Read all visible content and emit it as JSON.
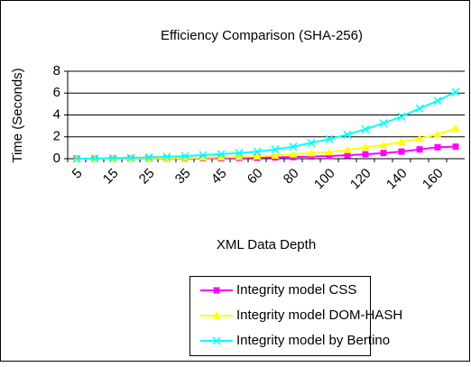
{
  "chart_data": {
    "type": "line",
    "title": "Efficiency Comparison (SHA-256)",
    "x_label": "XML Data Depth",
    "y_label": "Time (Seconds)",
    "categories": [
      "5",
      null,
      "15",
      null,
      "25",
      null,
      "35",
      null,
      "45",
      null,
      "60",
      null,
      "80",
      null,
      "100",
      null,
      "120",
      null,
      "140",
      null,
      "160",
      null
    ],
    "series": [
      {
        "name": "Integrity model CSS",
        "color": "#ff00ff",
        "marker": "square",
        "values": [
          0,
          0,
          0,
          0.01,
          0.01,
          0.02,
          0.03,
          0.04,
          0.05,
          0.07,
          0.09,
          0.12,
          0.15,
          0.2,
          0.25,
          0.32,
          0.4,
          0.52,
          0.65,
          0.85,
          1.05,
          1.1
        ]
      },
      {
        "name": "Integrity model DOM-HASH",
        "color": "#ffff00",
        "marker": "triangle",
        "values": [
          0,
          0,
          0.01,
          0.02,
          0.03,
          0.05,
          0.07,
          0.1,
          0.13,
          0.17,
          0.22,
          0.3,
          0.4,
          0.5,
          0.6,
          0.8,
          1.05,
          1.25,
          1.55,
          1.85,
          2.2,
          2.8
        ]
      },
      {
        "name": "Integrity model by Bertino",
        "color": "#00ffff",
        "marker": "x",
        "values": [
          0,
          0.02,
          0.05,
          0.08,
          0.12,
          0.18,
          0.25,
          0.33,
          0.42,
          0.52,
          0.65,
          0.85,
          1.1,
          1.45,
          1.8,
          2.2,
          2.7,
          3.25,
          3.85,
          4.6,
          5.3,
          6.1
        ]
      }
    ],
    "ylim": [
      0,
      8
    ],
    "yticks": [
      0,
      2,
      4,
      6,
      8
    ],
    "grid": true,
    "legend": "bottom"
  }
}
